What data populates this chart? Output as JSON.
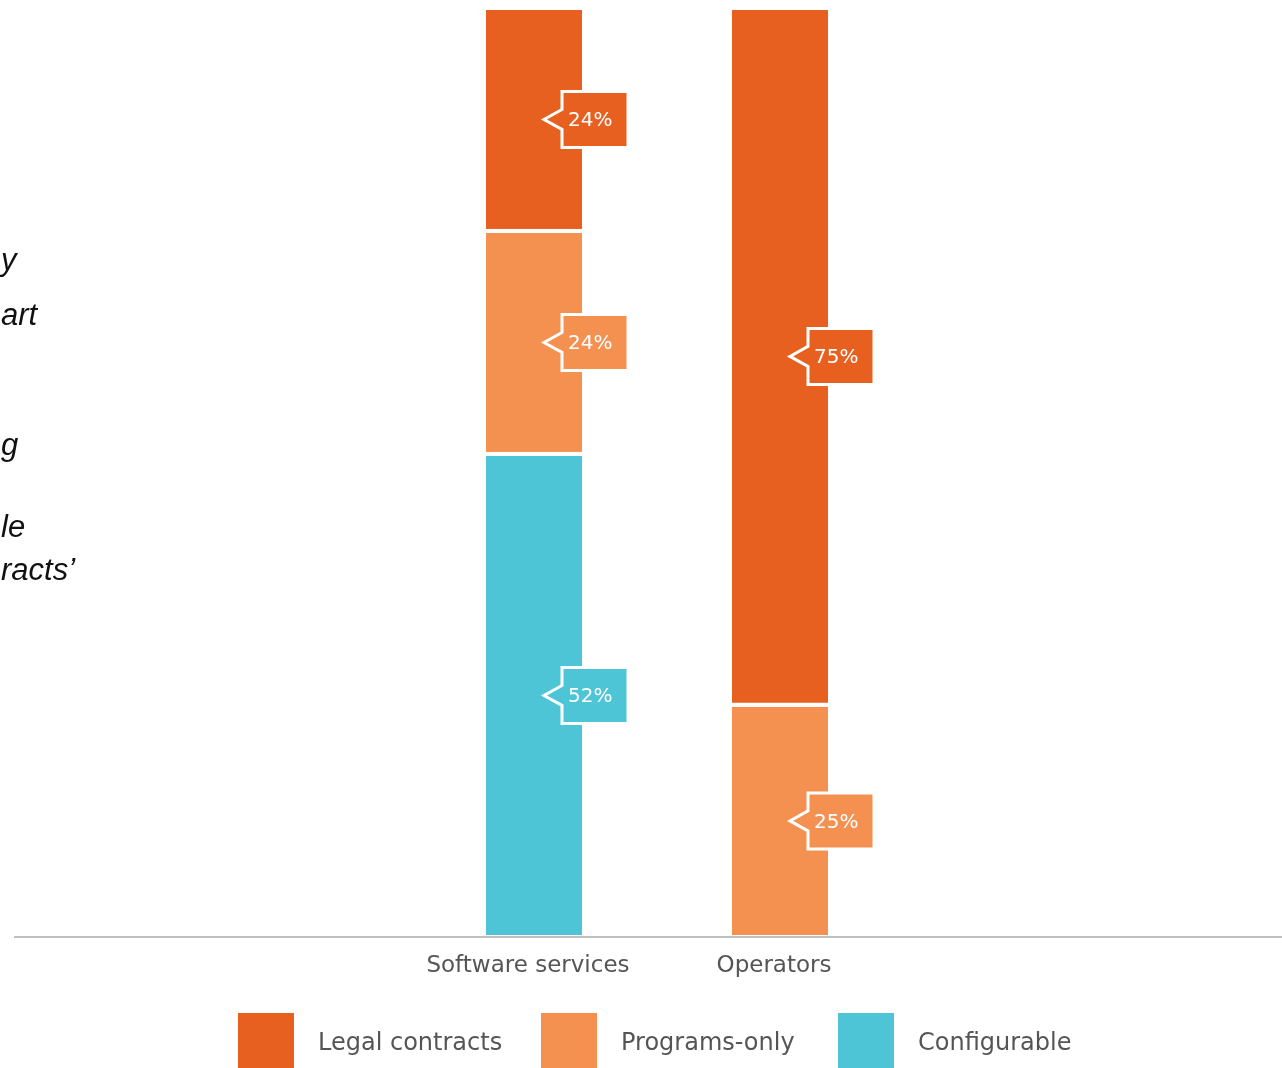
{
  "chart_data": {
    "type": "bar",
    "stacked": true,
    "categories": [
      "Software services",
      "Operators"
    ],
    "series": [
      {
        "name": "Configurable",
        "color": "#4ec5d6",
        "values": [
          52,
          null
        ],
        "value_labels": [
          "52%",
          null
        ]
      },
      {
        "name": "Programs-only",
        "color": "#f49150",
        "values": [
          24,
          25
        ],
        "value_labels": [
          "24%",
          "25%"
        ]
      },
      {
        "name": "Legal contracts",
        "color": "#e8601f",
        "values": [
          24,
          75
        ],
        "value_labels": [
          "24%",
          "75%"
        ]
      }
    ],
    "legend": "bottom",
    "annotations": [
      "y",
      "art",
      "g",
      "le",
      "racts’"
    ]
  }
}
